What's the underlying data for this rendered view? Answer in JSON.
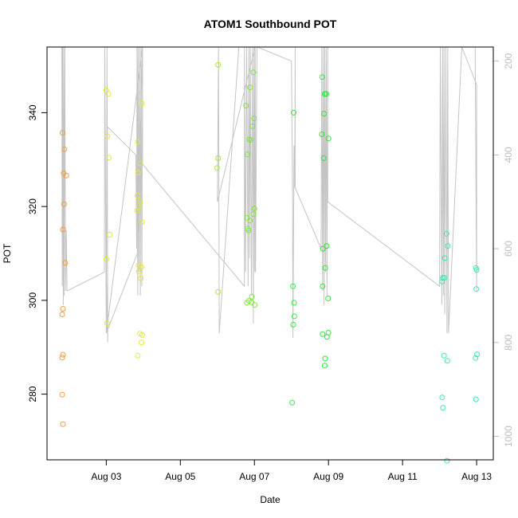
{
  "chart_data": {
    "type": "scatter",
    "title": "ATOM1 Southbound POT",
    "xlabel": "Date",
    "ylabel": "POT",
    "x_ticks": [
      "Aug 03",
      "Aug 05",
      "Aug 07",
      "Aug 09",
      "Aug 11",
      "Aug 13"
    ],
    "x_tick_days": [
      3,
      5,
      7,
      9,
      11,
      13
    ],
    "xlim": [
      1.4,
      13.45
    ],
    "ylim": [
      266.0,
      354.0
    ],
    "y_ticks": [
      280,
      300,
      320,
      340
    ],
    "y2lim": [
      1050,
      170
    ],
    "y2_ticks": [
      200,
      400,
      600,
      800,
      1000
    ],
    "y2_color": "#bdbdbd",
    "points": [
      {
        "x": 1.82,
        "y": 335.7,
        "color": "#f39c3c"
      },
      {
        "x": 1.87,
        "y": 332.2,
        "color": "#f39c3c"
      },
      {
        "x": 1.85,
        "y": 327.1,
        "color": "#f39c3c"
      },
      {
        "x": 1.92,
        "y": 326.6,
        "color": "#f39c3c"
      },
      {
        "x": 1.86,
        "y": 320.5,
        "color": "#f39c3c"
      },
      {
        "x": 1.83,
        "y": 315.1,
        "color": "#f39c3c"
      },
      {
        "x": 1.89,
        "y": 308.0,
        "color": "#f39c3c"
      },
      {
        "x": 1.83,
        "y": 298.2,
        "color": "#f39c3c"
      },
      {
        "x": 1.81,
        "y": 297.0,
        "color": "#f39c3c"
      },
      {
        "x": 1.83,
        "y": 288.4,
        "color": "#f39c3c"
      },
      {
        "x": 1.81,
        "y": 287.8,
        "color": "#f39c3c"
      },
      {
        "x": 1.81,
        "y": 279.9,
        "color": "#f39c3c"
      },
      {
        "x": 1.83,
        "y": 273.6,
        "color": "#f39c3c"
      },
      {
        "x": 3.0,
        "y": 344.8,
        "color": "#e5e53a"
      },
      {
        "x": 3.06,
        "y": 344.0,
        "color": "#e5e53a"
      },
      {
        "x": 3.03,
        "y": 335.0,
        "color": "#e5e53a"
      },
      {
        "x": 3.07,
        "y": 330.4,
        "color": "#e5e53a"
      },
      {
        "x": 3.09,
        "y": 314.0,
        "color": "#e5e53a"
      },
      {
        "x": 3.0,
        "y": 308.8,
        "color": "#e5e53a"
      },
      {
        "x": 3.02,
        "y": 295.1,
        "color": "#e5e53a"
      },
      {
        "x": 3.85,
        "y": 333.8,
        "color": "#e5e53a"
      },
      {
        "x": 3.96,
        "y": 342.0,
        "color": "#e5e53a"
      },
      {
        "x": 3.92,
        "y": 329.2,
        "color": "#e5e53a"
      },
      {
        "x": 3.86,
        "y": 327.2,
        "color": "#e5e53a"
      },
      {
        "x": 3.84,
        "y": 322.3,
        "color": "#e5e53a"
      },
      {
        "x": 3.91,
        "y": 321.0,
        "color": "#e5e53a"
      },
      {
        "x": 3.88,
        "y": 319.8,
        "color": "#e5e53a"
      },
      {
        "x": 3.83,
        "y": 319.1,
        "color": "#e5e53a"
      },
      {
        "x": 3.96,
        "y": 316.7,
        "color": "#e5e53a"
      },
      {
        "x": 3.87,
        "y": 307.5,
        "color": "#e5e53a"
      },
      {
        "x": 3.95,
        "y": 307.1,
        "color": "#e5e53a"
      },
      {
        "x": 3.88,
        "y": 306.2,
        "color": "#e5e53a"
      },
      {
        "x": 3.93,
        "y": 304.7,
        "color": "#e5e53a"
      },
      {
        "x": 3.91,
        "y": 292.9,
        "color": "#e5e53a"
      },
      {
        "x": 3.97,
        "y": 292.6,
        "color": "#e5e53a"
      },
      {
        "x": 3.95,
        "y": 291.0,
        "color": "#e5e53a"
      },
      {
        "x": 3.85,
        "y": 288.2,
        "color": "#e5e53a"
      },
      {
        "x": 6.02,
        "y": 350.2,
        "color": "#a8e83a"
      },
      {
        "x": 6.02,
        "y": 330.3,
        "color": "#a8e83a"
      },
      {
        "x": 5.99,
        "y": 328.2,
        "color": "#a8e83a"
      },
      {
        "x": 6.02,
        "y": 301.8,
        "color": "#a8e83a"
      },
      {
        "x": 6.77,
        "y": 341.5,
        "color": "#7ee83a"
      },
      {
        "x": 6.88,
        "y": 345.4,
        "color": "#7ee83a"
      },
      {
        "x": 6.97,
        "y": 348.6,
        "color": "#7ee83a"
      },
      {
        "x": 6.99,
        "y": 338.8,
        "color": "#7ee83a"
      },
      {
        "x": 6.95,
        "y": 337.1,
        "color": "#7ee83a"
      },
      {
        "x": 6.86,
        "y": 334.3,
        "color": "#7ee83a"
      },
      {
        "x": 6.9,
        "y": 334.2,
        "color": "#7ee83a"
      },
      {
        "x": 6.81,
        "y": 331.1,
        "color": "#7ee83a"
      },
      {
        "x": 7.0,
        "y": 319.6,
        "color": "#7ee83a"
      },
      {
        "x": 6.97,
        "y": 318.4,
        "color": "#7ee83a"
      },
      {
        "x": 6.8,
        "y": 317.6,
        "color": "#7ee83a"
      },
      {
        "x": 6.88,
        "y": 317.0,
        "color": "#7ee83a"
      },
      {
        "x": 6.82,
        "y": 315.3,
        "color": "#7ee83a"
      },
      {
        "x": 6.84,
        "y": 314.9,
        "color": "#7ee83a"
      },
      {
        "x": 6.93,
        "y": 300.8,
        "color": "#7ee83a"
      },
      {
        "x": 6.85,
        "y": 299.9,
        "color": "#7ee83a"
      },
      {
        "x": 6.8,
        "y": 299.5,
        "color": "#7ee83a"
      },
      {
        "x": 6.92,
        "y": 299.6,
        "color": "#7ee83a"
      },
      {
        "x": 7.01,
        "y": 299.0,
        "color": "#7ee83a"
      },
      {
        "x": 8.06,
        "y": 340.0,
        "color": "#3ae84a"
      },
      {
        "x": 8.04,
        "y": 303.0,
        "color": "#3ae84a"
      },
      {
        "x": 8.07,
        "y": 299.5,
        "color": "#3ae84a"
      },
      {
        "x": 8.08,
        "y": 296.6,
        "color": "#3ae84a"
      },
      {
        "x": 8.05,
        "y": 294.8,
        "color": "#3ae84a"
      },
      {
        "x": 8.02,
        "y": 278.2,
        "color": "#3ae84a"
      },
      {
        "x": 8.83,
        "y": 347.6,
        "color": "#2ae838"
      },
      {
        "x": 8.9,
        "y": 344.0,
        "color": "#2ae838"
      },
      {
        "x": 8.94,
        "y": 344.0,
        "color": "#2ae838"
      },
      {
        "x": 8.88,
        "y": 339.8,
        "color": "#2ae838"
      },
      {
        "x": 8.82,
        "y": 335.4,
        "color": "#2ae838"
      },
      {
        "x": 9.0,
        "y": 334.5,
        "color": "#2ae838"
      },
      {
        "x": 8.87,
        "y": 330.3,
        "color": "#2ae838"
      },
      {
        "x": 8.95,
        "y": 311.6,
        "color": "#2ae838"
      },
      {
        "x": 8.85,
        "y": 311.0,
        "color": "#2ae838"
      },
      {
        "x": 8.91,
        "y": 306.9,
        "color": "#2ae838"
      },
      {
        "x": 8.84,
        "y": 303.0,
        "color": "#2ae838"
      },
      {
        "x": 8.99,
        "y": 300.4,
        "color": "#2ae838"
      },
      {
        "x": 9.0,
        "y": 293.1,
        "color": "#2ae838"
      },
      {
        "x": 8.84,
        "y": 292.8,
        "color": "#2ae838"
      },
      {
        "x": 8.96,
        "y": 292.2,
        "color": "#2ae838"
      },
      {
        "x": 8.91,
        "y": 287.6,
        "color": "#2ae838"
      },
      {
        "x": 8.9,
        "y": 286.1,
        "color": "#2ae838"
      },
      {
        "x": 12.19,
        "y": 314.2,
        "color": "#3ae8b4"
      },
      {
        "x": 12.22,
        "y": 311.6,
        "color": "#3ae8b4"
      },
      {
        "x": 12.14,
        "y": 309.0,
        "color": "#3ae8b4"
      },
      {
        "x": 12.09,
        "y": 304.8,
        "color": "#3ae8b4"
      },
      {
        "x": 12.13,
        "y": 304.8,
        "color": "#3ae8b4"
      },
      {
        "x": 12.07,
        "y": 304.0,
        "color": "#3ae8b4"
      },
      {
        "x": 12.12,
        "y": 288.2,
        "color": "#3ae8b4"
      },
      {
        "x": 12.21,
        "y": 287.1,
        "color": "#3ae8b4"
      },
      {
        "x": 12.07,
        "y": 279.3,
        "color": "#3ae8b4"
      },
      {
        "x": 12.09,
        "y": 277.1,
        "color": "#3ae8b4"
      },
      {
        "x": 12.2,
        "y": 265.8,
        "color": "#3ae8b4"
      },
      {
        "x": 12.98,
        "y": 306.9,
        "color": "#3ae8b4"
      },
      {
        "x": 13.0,
        "y": 306.5,
        "color": "#3ae8b4"
      },
      {
        "x": 12.99,
        "y": 302.4,
        "color": "#3ae8b4"
      },
      {
        "x": 13.01,
        "y": 288.5,
        "color": "#3ae8b4"
      },
      {
        "x": 12.97,
        "y": 287.7,
        "color": "#3ae8b4"
      },
      {
        "x": 12.98,
        "y": 278.9,
        "color": "#3ae8b4"
      }
    ],
    "pressure_trace": [
      [
        1.8,
        170
      ],
      [
        1.81,
        680
      ],
      [
        1.82,
        170
      ],
      [
        1.84,
        720
      ],
      [
        1.85,
        170
      ],
      [
        1.86,
        700
      ],
      [
        1.88,
        170
      ],
      [
        1.9,
        690
      ],
      [
        1.92,
        560
      ],
      [
        1.94,
        690
      ],
      [
        2.95,
        650
      ],
      [
        2.96,
        170
      ],
      [
        3.0,
        780
      ],
      [
        3.02,
        170
      ],
      [
        3.04,
        800
      ],
      [
        3.0,
        650
      ],
      [
        3.03,
        340
      ],
      [
        3.03,
        340
      ],
      [
        3.8,
        400
      ],
      [
        3.82,
        600
      ],
      [
        3.83,
        170
      ],
      [
        3.85,
        700
      ],
      [
        3.86,
        170
      ],
      [
        3.88,
        650
      ],
      [
        3.9,
        170
      ],
      [
        3.92,
        700
      ],
      [
        3.94,
        170
      ],
      [
        3.96,
        680
      ],
      [
        3.98,
        170
      ],
      [
        3.84,
        610
      ],
      [
        3.0,
        780
      ],
      [
        3.98,
        170
      ],
      [
        3.98,
        420
      ],
      [
        6.73,
        680
      ],
      [
        6.73,
        170
      ],
      [
        6.76,
        650
      ],
      [
        6.79,
        170
      ],
      [
        6.83,
        680
      ],
      [
        6.85,
        170
      ],
      [
        6.87,
        620
      ],
      [
        6.89,
        170
      ],
      [
        6.92,
        700
      ],
      [
        6.95,
        170
      ],
      [
        6.97,
        760
      ],
      [
        6.99,
        170
      ],
      [
        7.01,
        650
      ],
      [
        7.02,
        170
      ],
      [
        6.0,
        500
      ],
      [
        6.03,
        170
      ],
      [
        6.05,
        780
      ],
      [
        6.58,
        170
      ],
      [
        7.02,
        170
      ],
      [
        7.03,
        650
      ],
      [
        7.07,
        170
      ],
      [
        7.08,
        170
      ],
      [
        8.0,
        200
      ],
      [
        8.03,
        470
      ],
      [
        8.04,
        790
      ],
      [
        8.07,
        380
      ],
      [
        8.09,
        470
      ],
      [
        8.1,
        170
      ],
      [
        8.1,
        470
      ],
      [
        8.8,
        600
      ],
      [
        8.82,
        170
      ],
      [
        8.84,
        690
      ],
      [
        8.86,
        170
      ],
      [
        8.88,
        720
      ],
      [
        8.9,
        170
      ],
      [
        8.92,
        650
      ],
      [
        8.94,
        170
      ],
      [
        8.96,
        700
      ],
      [
        8.98,
        170
      ],
      [
        8.98,
        500
      ],
      [
        12.0,
        680
      ],
      [
        12.02,
        170
      ],
      [
        12.06,
        720
      ],
      [
        12.08,
        170
      ],
      [
        12.1,
        700
      ],
      [
        12.12,
        170
      ],
      [
        12.14,
        740
      ],
      [
        12.17,
        170
      ],
      [
        12.2,
        780
      ],
      [
        12.22,
        170
      ],
      [
        12.24,
        780
      ],
      [
        12.6,
        170
      ],
      [
        13.0,
        250
      ],
      [
        13.0,
        680
      ],
      [
        12.96,
        170
      ],
      [
        13.0,
        690
      ]
    ]
  }
}
